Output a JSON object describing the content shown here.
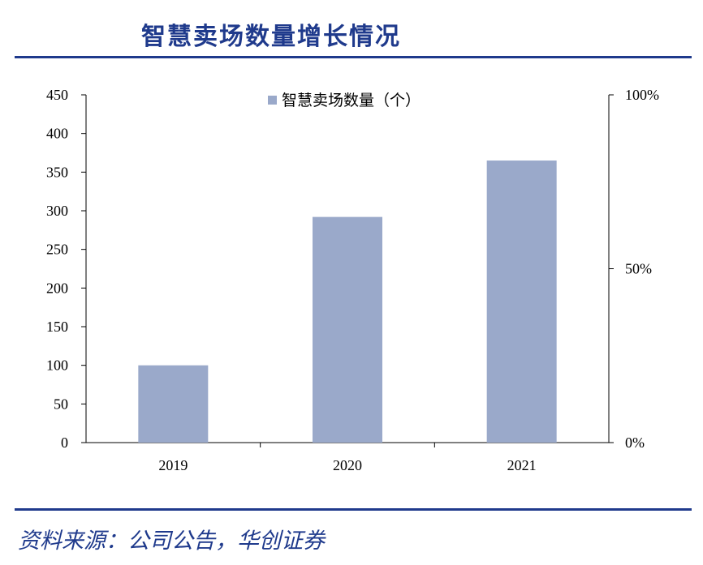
{
  "header": {
    "title": "智慧卖场数量增长情况"
  },
  "footer": {
    "source": "资料来源：公司公告，华创证券"
  },
  "chart_data": {
    "type": "bar",
    "categories": [
      "2019",
      "2020",
      "2021"
    ],
    "series": [
      {
        "name": "智慧卖场数量（个）",
        "values": [
          100,
          292,
          365
        ],
        "color": "#9aa9ca"
      }
    ],
    "ylim": [
      0,
      450
    ],
    "yticks": [
      "0",
      "50",
      "100",
      "150",
      "200",
      "250",
      "300",
      "350",
      "400",
      "450"
    ],
    "y2lim": [
      0,
      100
    ],
    "y2ticks": [
      "0%",
      "50%",
      "100%"
    ],
    "grid": false,
    "legend": "top-center"
  }
}
